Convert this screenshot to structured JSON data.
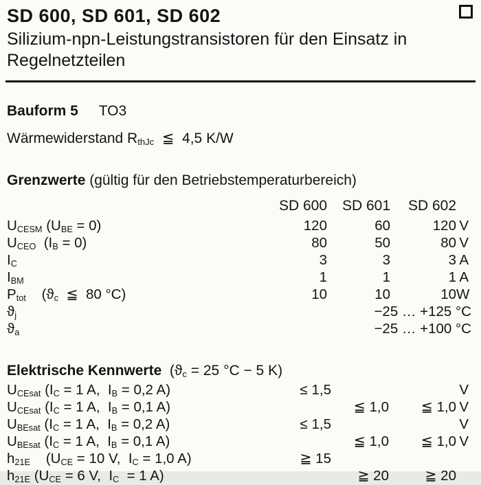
{
  "header": {
    "title": "SD 600, SD 601, SD 602",
    "subtitle": "Silizium-npn-Leistungstransistoren für den Einsatz in Regelnetzteilen",
    "corner_icon": "document-marker-square"
  },
  "info": {
    "bauform_label": "Bauform 5",
    "bauform_value": "TO3",
    "thermal_resistance": "Wärmewiderstand R~thJc~  ≦  4,5 K/W"
  },
  "grenzwerte": {
    "heading": "Grenzwerte",
    "heading_note": " (gültig für den Betriebstemperaturbereich)",
    "columns": [
      "SD 600",
      "SD 601",
      "SD 602"
    ],
    "rows": [
      {
        "label": "U~CESM~ (U~BE~ = 0)",
        "v1": "120",
        "v2": "60",
        "v3": "120",
        "unit": "V"
      },
      {
        "label": "U~CEO~  (I~B~ = 0)",
        "v1": "80",
        "v2": "50",
        "v3": "80",
        "unit": "V"
      },
      {
        "label": "I~C~",
        "v1": "3",
        "v2": "3",
        "v3": "3",
        "unit": "A"
      },
      {
        "label": "I~BM~",
        "v1": "1",
        "v2": "1",
        "v3": "1",
        "unit": "A"
      },
      {
        "label": "P~tot~    (ϑ~c~  ≦  80 °C)",
        "v1": "10",
        "v2": "10",
        "v3": "10",
        "unit": "W"
      },
      {
        "label": "ϑ~j~",
        "span": "−25 … +125 °C"
      },
      {
        "label": "ϑ~a~",
        "span": "−25 … +100 °C"
      }
    ]
  },
  "kennwerte": {
    "heading": "Elektrische Kennwerte",
    "heading_note": "  (ϑ~c~ = 25 °C − 5 K)",
    "rows": [
      {
        "label": "U~CEsat~ (I~C~ = 1 A,  I~B~ = 0,2 A)",
        "v1": "≤ 1,5",
        "v2": "",
        "v3": "",
        "unit": "V"
      },
      {
        "label": "U~CEsat~ (I~C~ = 1 A,  I~B~ = 0,1 A)",
        "v1": "",
        "v2": "≦ 1,0",
        "v3": "≦ 1,0",
        "unit": "V"
      },
      {
        "label": "U~BEsat~ (I~C~ = 1 A,  I~B~ = 0,2 A)",
        "v1": "≤ 1,5",
        "v2": "",
        "v3": "",
        "unit": "V"
      },
      {
        "label": "U~BEsat~ (I~C~ = 1 A,  I~B~ = 0,1 A)",
        "v1": "",
        "v2": "≦ 1,0",
        "v3": "≦ 1,0",
        "unit": "V"
      },
      {
        "label": "h~21E~    (U~CE~ = 10 V,  I~C~ = 1,0 A)",
        "v1": "≧ 15",
        "v2": "",
        "v3": "",
        "unit": ""
      },
      {
        "label": "h~21E~ (U~CE~ = 6 V,  I~C~  = 1 A)",
        "v1": "",
        "v2": "≧ 20",
        "v3": "≧ 20",
        "unit": ""
      }
    ]
  }
}
